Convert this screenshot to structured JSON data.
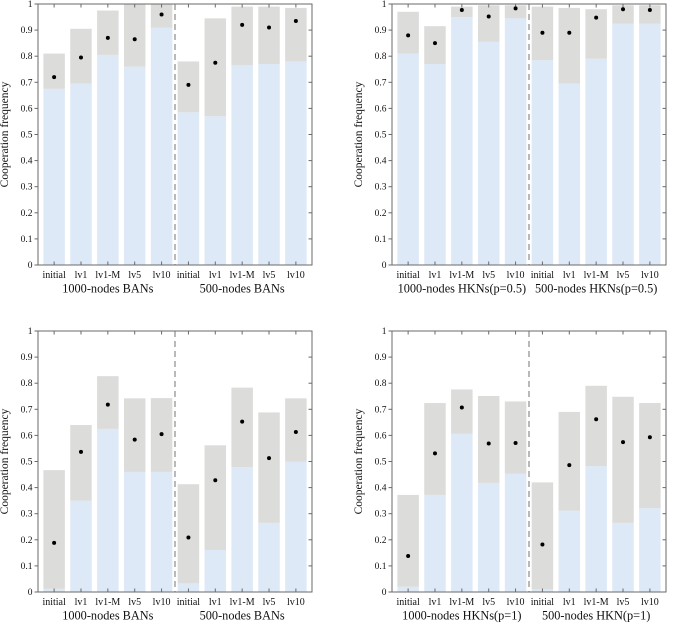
{
  "figure": {
    "title": "",
    "colors": {
      "background": "#ffffff",
      "bar_fill": "#dde9f7",
      "range_box_fill": "#dcdcda",
      "mean_dot": "#000000",
      "axis": "#6a6a6a",
      "divider": "#808080",
      "text": "#111111"
    }
  },
  "chart_data": [
    {
      "type": "bar",
      "panel": "top-left",
      "title": "",
      "xlabel": "",
      "ylabel": "Cooperation frequency",
      "ylim": [
        0,
        1
      ],
      "ytick_interval": 0.1,
      "grid": false,
      "legend": null,
      "categories": [
        "initial",
        "lv1",
        "lv1-M",
        "lv5",
        "lv10",
        "initial",
        "lv1",
        "lv1-M",
        "lv5",
        "lv10"
      ],
      "group_labels": [
        "1000-nodes BANs",
        "500-nodes BANs"
      ],
      "divider_after_category_index": 4,
      "series": [
        {
          "name": "range_min_bar",
          "values": [
            0.675,
            0.695,
            0.805,
            0.76,
            0.91,
            0.585,
            0.57,
            0.765,
            0.77,
            0.78
          ]
        },
        {
          "name": "range_max_box",
          "values": [
            0.81,
            0.905,
            0.975,
            1.0,
            1.0,
            0.78,
            0.945,
            0.99,
            0.99,
            0.985
          ]
        },
        {
          "name": "mean_dot",
          "values": [
            0.72,
            0.795,
            0.87,
            0.865,
            0.96,
            0.69,
            0.775,
            0.92,
            0.91,
            0.935
          ]
        }
      ]
    },
    {
      "type": "bar",
      "panel": "top-right",
      "title": "",
      "xlabel": "",
      "ylabel": "Cooperation frequency",
      "ylim": [
        0,
        1
      ],
      "ytick_interval": 0.1,
      "grid": false,
      "legend": null,
      "categories": [
        "initial",
        "lv1",
        "lv1-M",
        "lv5",
        "lv10",
        "initial",
        "lv1",
        "lv1-M",
        "lv5",
        "lv10"
      ],
      "group_labels": [
        "1000-nodes HKNs(p=0.5)",
        "500-nodes HKNs(p=0.5)"
      ],
      "divider_after_category_index": 4,
      "series": [
        {
          "name": "range_min_bar",
          "values": [
            0.81,
            0.77,
            0.95,
            0.855,
            0.945,
            0.785,
            0.695,
            0.79,
            0.925,
            0.925
          ]
        },
        {
          "name": "range_max_box",
          "values": [
            0.97,
            0.915,
            0.99,
            0.995,
            0.995,
            0.99,
            0.985,
            0.98,
            0.995,
            0.995
          ]
        },
        {
          "name": "mean_dot",
          "values": [
            0.88,
            0.85,
            0.977,
            0.952,
            0.983,
            0.89,
            0.89,
            0.948,
            0.98,
            0.977
          ]
        }
      ]
    },
    {
      "type": "bar",
      "panel": "bottom-left",
      "title": "",
      "xlabel": "",
      "ylabel": "Cooperation frequency",
      "ylim": [
        0,
        1
      ],
      "ytick_interval": 0.1,
      "grid": false,
      "legend": null,
      "categories": [
        "initial",
        "lv1",
        "lv1-M",
        "lv5",
        "lv10",
        "initial",
        "lv1",
        "lv1-M",
        "lv5",
        "lv10"
      ],
      "group_labels": [
        "1000-nodes BANs",
        "500-nodes BANs"
      ],
      "divider_after_category_index": 4,
      "series": [
        {
          "name": "range_min_bar",
          "values": [
            0.012,
            0.35,
            0.625,
            0.46,
            0.46,
            0.033,
            0.161,
            0.478,
            0.265,
            0.499
          ]
        },
        {
          "name": "range_max_box",
          "values": [
            0.467,
            0.64,
            0.827,
            0.742,
            0.743,
            0.413,
            0.562,
            0.783,
            0.688,
            0.742
          ]
        },
        {
          "name": "mean_dot",
          "values": [
            0.188,
            0.537,
            0.718,
            0.584,
            0.605,
            0.209,
            0.428,
            0.653,
            0.513,
            0.613
          ]
        }
      ]
    },
    {
      "type": "bar",
      "panel": "bottom-right",
      "title": "",
      "xlabel": "",
      "ylabel": "Cooperation frequency",
      "ylim": [
        0,
        1
      ],
      "ytick_interval": 0.1,
      "grid": false,
      "legend": null,
      "categories": [
        "initial",
        "lv1",
        "lv1-M",
        "lv5",
        "lv10",
        "initial",
        "lv1",
        "lv1-M",
        "lv5",
        "lv10"
      ],
      "group_labels": [
        "1000-nodes HKNs(p=1)",
        "500-nodes HKN(p=1)"
      ],
      "divider_after_category_index": 4,
      "series": [
        {
          "name": "range_min_bar",
          "values": [
            0.02,
            0.372,
            0.606,
            0.418,
            0.454,
            0.01,
            0.312,
            0.482,
            0.265,
            0.321
          ]
        },
        {
          "name": "range_max_box",
          "values": [
            0.372,
            0.724,
            0.776,
            0.751,
            0.73,
            0.42,
            0.69,
            0.79,
            0.748,
            0.724
          ]
        },
        {
          "name": "mean_dot",
          "values": [
            0.138,
            0.531,
            0.707,
            0.569,
            0.571,
            0.182,
            0.486,
            0.662,
            0.574,
            0.593
          ]
        }
      ]
    }
  ]
}
